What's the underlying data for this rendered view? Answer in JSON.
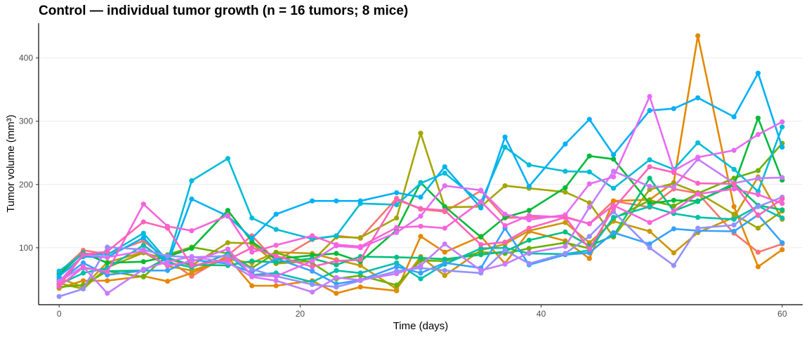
{
  "chart_data": {
    "type": "line",
    "title": "Control — individual tumor growth (n = 16 tumors; 8 mice)",
    "xlabel": "Time (days)",
    "ylabel": "Tumor volume (mm³)",
    "xlim": [
      -1.7,
      61.7
    ],
    "ylim": [
      10,
      455
    ],
    "xticks": [
      0,
      20,
      40,
      60
    ],
    "yticks": [
      100,
      200,
      300,
      400
    ],
    "grid": true,
    "legend": "none",
    "x": [
      0,
      2,
      4,
      7,
      9,
      11,
      14,
      16,
      18,
      21,
      23,
      25,
      28,
      30,
      32,
      35,
      37,
      39,
      42,
      44,
      46,
      49,
      51,
      53,
      56,
      58,
      60
    ],
    "series": [
      {
        "color": "#F8766D",
        "values": [
          61,
          96,
          90,
          111,
          81,
          55,
          88,
          119,
          79,
          113,
          119,
          115,
          178,
          161,
          157,
          190,
          147,
          148,
          149,
          138,
          174,
          164,
          193,
          186,
          123,
          93,
          106
        ]
      },
      {
        "color": "#E58700",
        "values": [
          36,
          48,
          48,
          55,
          47,
          60,
          85,
          40,
          40,
          48,
          28,
          38,
          32,
          118,
          93,
          118,
          75,
          126,
          111,
          83,
          174,
          176,
          203,
          435,
          165,
          70,
          97
        ]
      },
      {
        "color": "#C99800",
        "values": [
          52,
          38,
          77,
          93,
          71,
          64,
          82,
          76,
          93,
          91,
          81,
          72,
          35,
          86,
          56,
          96,
          106,
          127,
          140,
          108,
          142,
          126,
          92,
          124,
          148,
          212,
          145
        ]
      },
      {
        "color": "#A3A500",
        "values": [
          44,
          35,
          69,
          92,
          82,
          72,
          108,
          107,
          75,
          79,
          117,
          116,
          147,
          281,
          164,
          165,
          198,
          194,
          188,
          171,
          117,
          192,
          202,
          187,
          153,
          131,
          158
        ]
      },
      {
        "color": "#6BB100",
        "values": [
          38,
          41,
          63,
          54,
          89,
          101,
          91,
          68,
          92,
          76,
          51,
          56,
          41,
          80,
          79,
          93,
          91,
          99,
          108,
          99,
          146,
          175,
          166,
          186,
          210,
          222,
          265
        ]
      },
      {
        "color": "#00BA38",
        "values": [
          58,
          92,
          76,
          78,
          86,
          99,
          159,
          110,
          82,
          88,
          91,
          78,
          128,
          203,
          165,
          117,
          148,
          159,
          195,
          245,
          240,
          170,
          175,
          174,
          199,
          305,
          207
        ]
      },
      {
        "color": "#00BF7D",
        "values": [
          50,
          68,
          63,
          64,
          84,
          73,
          72,
          79,
          77,
          83,
          73,
          86,
          85,
          84,
          82,
          89,
          94,
          112,
          125,
          103,
          119,
          210,
          158,
          173,
          202,
          167,
          160
        ]
      },
      {
        "color": "#00C0AF",
        "values": [
          42,
          60,
          68,
          104,
          77,
          69,
          90,
          57,
          60,
          46,
          64,
          60,
          76,
          51,
          74,
          99,
          100,
          91,
          90,
          96,
          148,
          165,
          154,
          148,
          145,
          166,
          147
        ]
      },
      {
        "color": "#00BCD8",
        "values": [
          63,
          91,
          89,
          123,
          79,
          206,
          241,
          147,
          129,
          114,
          119,
          170,
          168,
          202,
          218,
          172,
          259,
          231,
          221,
          220,
          194,
          239,
          224,
          266,
          224,
          189,
          291
        ]
      },
      {
        "color": "#00B0F6",
        "values": [
          55,
          86,
          85,
          116,
          75,
          177,
          150,
          115,
          153,
          174,
          174,
          174,
          187,
          180,
          228,
          163,
          275,
          197,
          264,
          303,
          247,
          317,
          320,
          337,
          307,
          376,
          259
        ]
      },
      {
        "color": "#35A2FF",
        "values": [
          48,
          76,
          57,
          64,
          64,
          81,
          75,
          61,
          83,
          63,
          43,
          49,
          70,
          60,
          76,
          68,
          131,
          73,
          89,
          92,
          124,
          106,
          130,
          127,
          126,
          152,
          108
        ]
      },
      {
        "color": "#9590FF",
        "values": [
          23,
          35,
          101,
          97,
          87,
          85,
          87,
          66,
          55,
          42,
          38,
          48,
          63,
          68,
          64,
          60,
          96,
          75,
          91,
          118,
          157,
          100,
          72,
          131,
          136,
          165,
          180
        ]
      },
      {
        "color": "#C77CFF",
        "values": [
          47,
          70,
          28,
          66,
          78,
          86,
          77,
          54,
          48,
          30,
          53,
          49,
          59,
          72,
          106,
          64,
          74,
          92,
          102,
          164,
          221,
          197,
          196,
          240,
          202,
          210,
          211
        ]
      },
      {
        "color": "#E76BF3",
        "values": [
          46,
          89,
          85,
          95,
          72,
          78,
          98,
          56,
          55,
          79,
          103,
          100,
          124,
          150,
          198,
          191,
          153,
          144,
          152,
          201,
          212,
          339,
          222,
          243,
          254,
          279,
          299
        ]
      },
      {
        "color": "#FA62DB",
        "values": [
          39,
          69,
          62,
          169,
          134,
          127,
          151,
          93,
          104,
          119,
          105,
          102,
          132,
          134,
          131,
          173,
          135,
          151,
          148,
          138,
          167,
          140,
          158,
          185,
          193,
          184,
          170
        ]
      },
      {
        "color": "#FF62BC",
        "values": [
          40,
          89,
          94,
          141,
          131,
          72,
          81,
          100,
          87,
          70,
          79,
          81,
          176,
          162,
          159,
          105,
          109,
          131,
          148,
          98,
          162,
          228,
          219,
          202,
          201,
          151,
          177
        ]
      }
    ]
  }
}
